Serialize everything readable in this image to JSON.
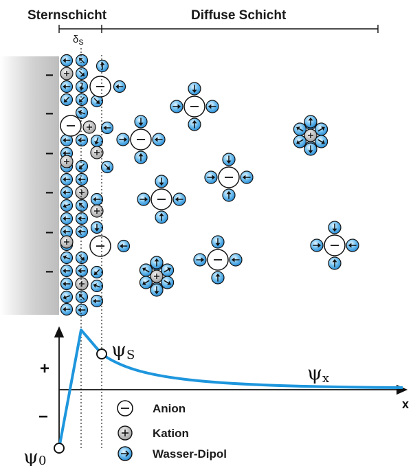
{
  "headers": {
    "stern": "Sternschicht",
    "diffuse": "Diffuse Schicht",
    "delta": "δ",
    "delta_sub": "S"
  },
  "wall_charge": "−",
  "graph": {
    "plus": "+",
    "minus": "−",
    "x_label": "x",
    "psi0": "ψ",
    "psi0_sub": "0",
    "psiS": "ψ",
    "psiS_sub": "S",
    "psiX": "ψ",
    "psiX_sub": "x"
  },
  "legend": [
    {
      "id": "anion",
      "label": "Anion"
    },
    {
      "id": "kation",
      "label": "Kation"
    },
    {
      "id": "dipol",
      "label": "Wasser-Dipol"
    }
  ],
  "colors": {
    "wall": "#c8c8c8",
    "dipole": "#2b8fd9",
    "dipole_light": "#dff1ff",
    "cation": "#b5b5b5",
    "curve": "#1e96dd"
  }
}
